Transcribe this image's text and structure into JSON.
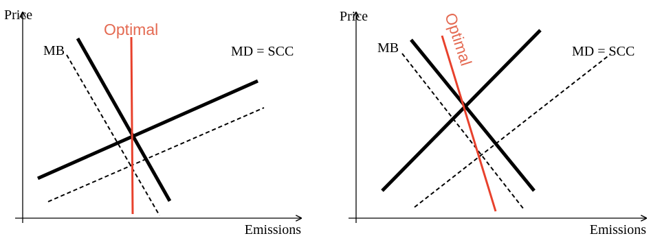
{
  "colors": {
    "ink": "#000000",
    "optimal": "#e8412c",
    "optimal_label": "#e46a52",
    "background": "#ffffff"
  },
  "left_panel": {
    "y_axis_label": "Price",
    "x_axis_label": "Emissions",
    "mb_label": "MB",
    "md_label": "MD = SCC",
    "optimal_label": "Optimal"
  },
  "right_panel": {
    "y_axis_label": "Price",
    "x_axis_label": "Emissions",
    "mb_label": "MB",
    "md_label": "MD = SCC",
    "optimal_label": "Optimal"
  }
}
